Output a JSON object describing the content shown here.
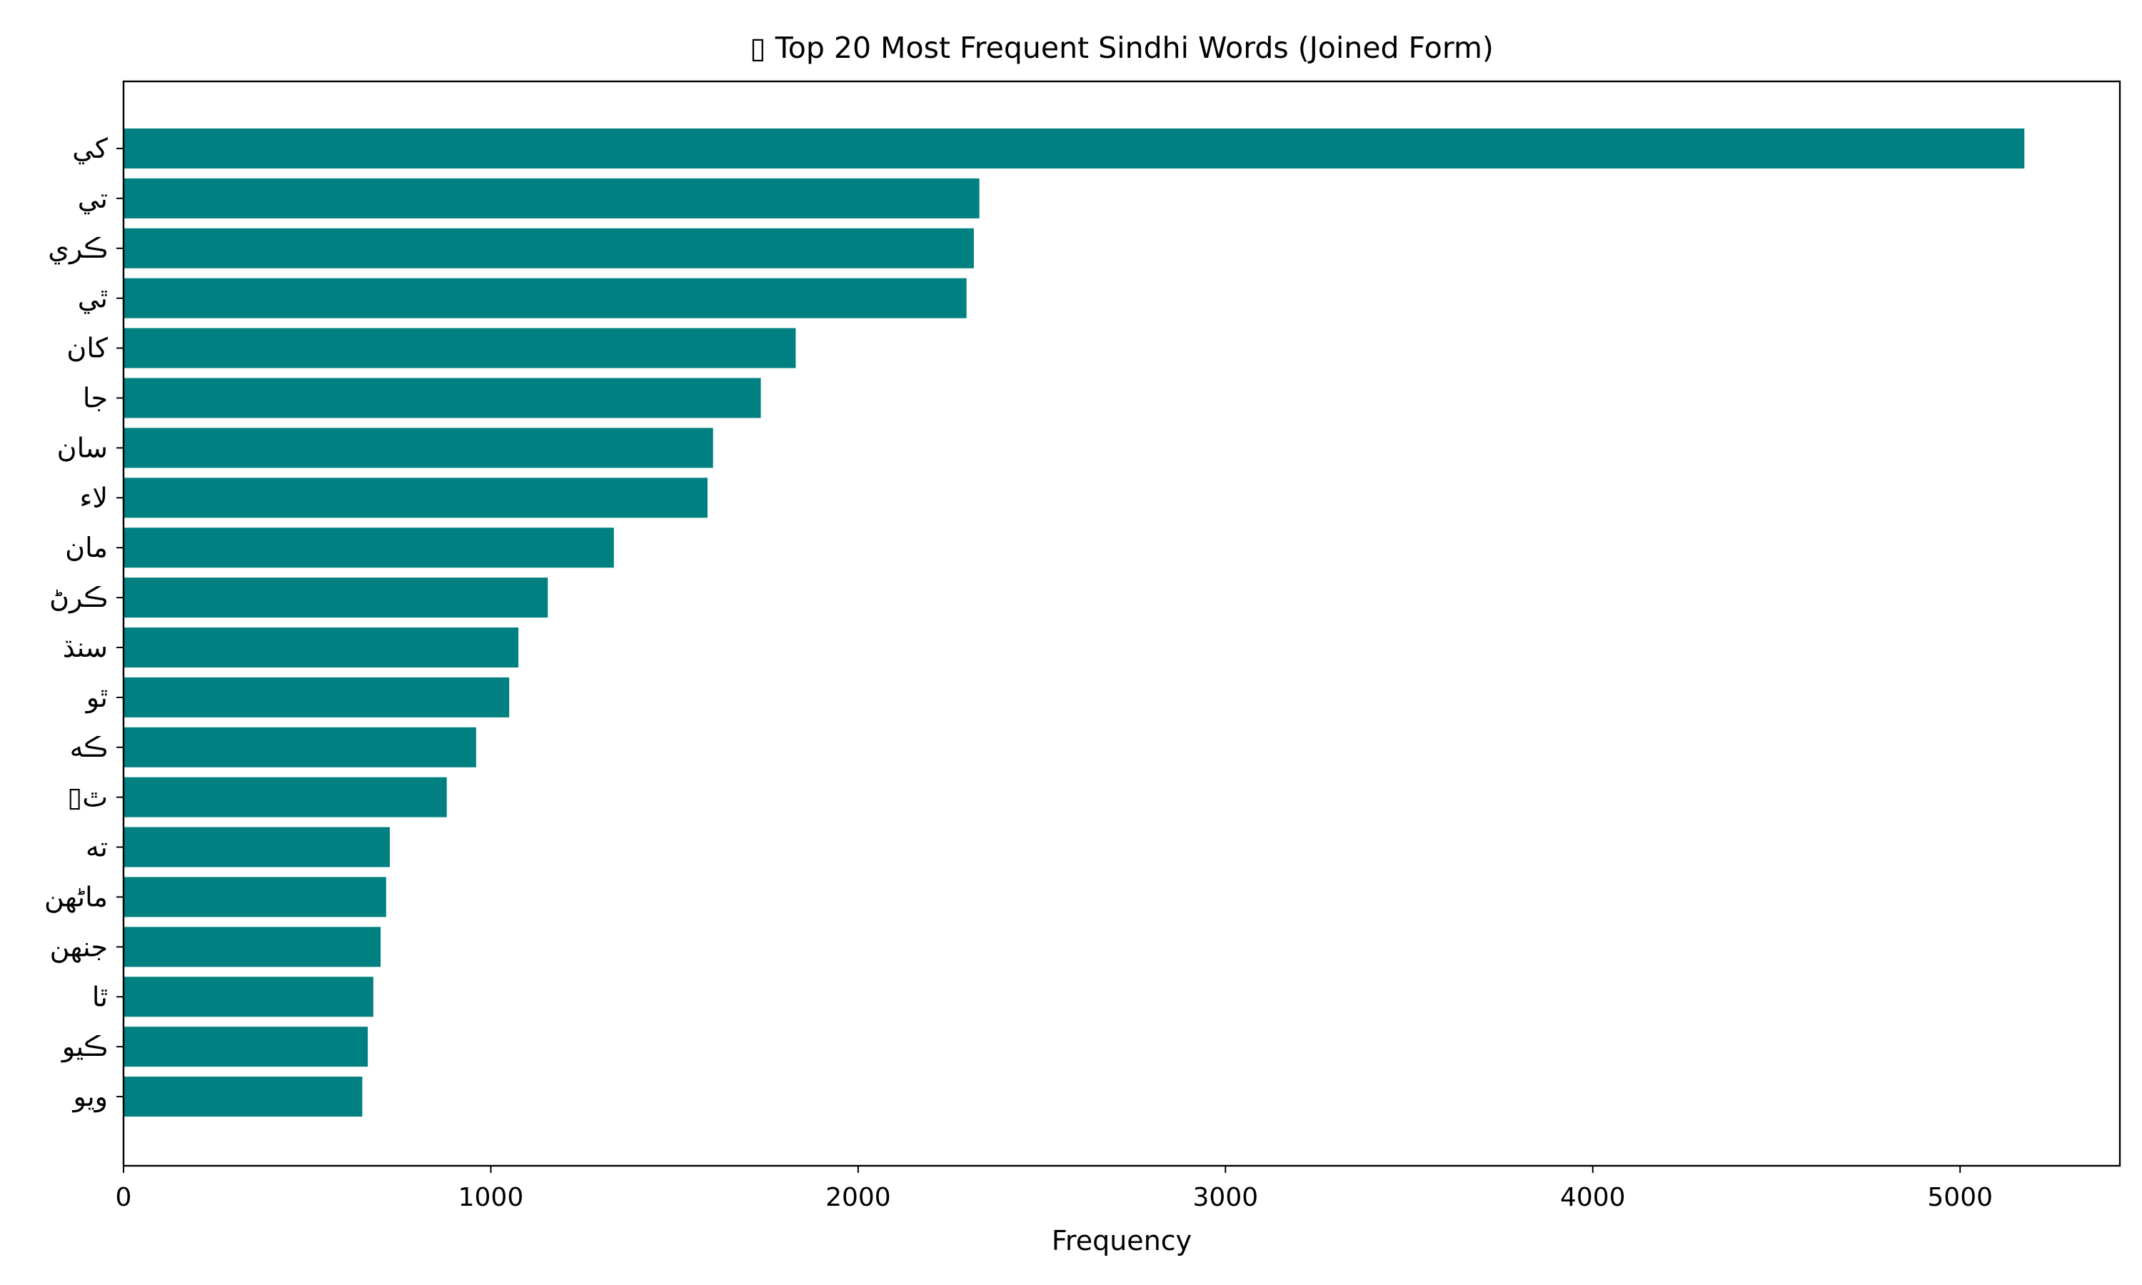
{
  "chart_data": {
    "type": "bar",
    "orientation": "horizontal",
    "title": "▯ Top 20 Most Frequent Sindhi Words (Joined Form)",
    "xlabel": "Frequency",
    "ylabel": "",
    "xlim": [
      0,
      5435
    ],
    "xticks": [
      0,
      1000,
      2000,
      3000,
      4000,
      5000
    ],
    "grid": false,
    "bar_color": "#008080",
    "categories": [
      "كي",
      "تي",
      "ڪري",
      "ٿي",
      "کان",
      "جا",
      "سان",
      "لاء",
      "مان",
      "ڪرڻ",
      "سنڌ",
      "ٿو",
      "ڪه",
      "▯ٿ",
      "ته",
      "ماڻهن",
      "جنهن",
      "ٿا",
      "ڪيو",
      "ويو"
    ],
    "values": [
      5175,
      2330,
      2315,
      2295,
      1830,
      1735,
      1605,
      1590,
      1335,
      1155,
      1075,
      1050,
      960,
      880,
      725,
      715,
      700,
      680,
      665,
      650
    ]
  }
}
